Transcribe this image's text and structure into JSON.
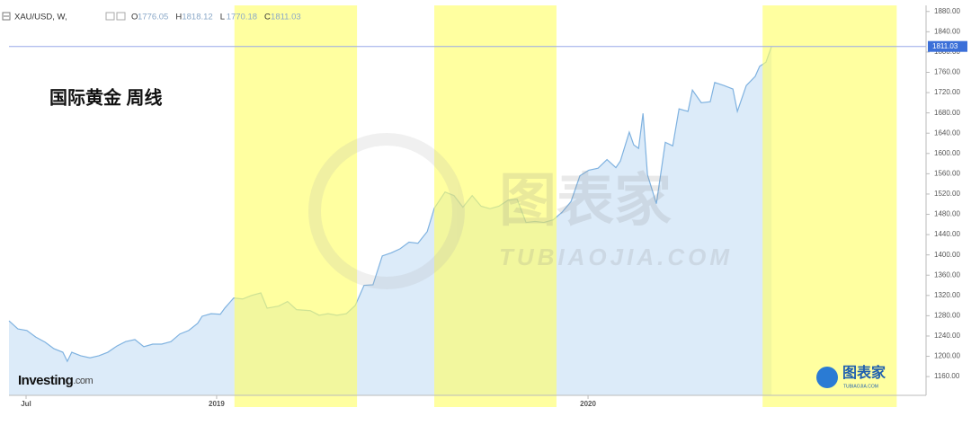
{
  "chart_data": {
    "type": "area",
    "symbol": "XAU/USD, W,",
    "ohlc": [
      {
        "label": "O",
        "value": 1776.05
      },
      {
        "label": "H",
        "value": 1818.12
      },
      {
        "label": "L",
        "value": 1770.18
      },
      {
        "label": "C",
        "value": 1811.03
      }
    ],
    "annotation": "国际黄金 周线",
    "logo": "Investing",
    "logo_suffix": ".com",
    "watermark": "图表家",
    "watermark_sub": "TUBIAOJIA.COM",
    "color": "#7fb2e0",
    "fill": "#dcebf9",
    "shade_color": "#ffff66",
    "shaded_ranges": [
      [
        2019.048,
        2019.378
      ],
      [
        2019.586,
        2019.915
      ],
      [
        2020.47,
        2020.831
      ]
    ],
    "xlim": [
      2018.441,
      2020.91
    ],
    "ylim": [
      1123,
      1892
    ],
    "xticks": [
      {
        "value": 2018.487,
        "label": "Jul"
      },
      2019,
      2020
    ],
    "yticks": [
      {
        "value": 1160,
        "label": "1160.00"
      },
      {
        "value": 1200,
        "label": "1200.00"
      },
      {
        "value": 1240,
        "label": "1240.00"
      },
      {
        "value": 1280,
        "label": "1280.00"
      },
      {
        "value": 1320,
        "label": "1320.00"
      },
      {
        "value": 1360,
        "label": "1360.00"
      },
      {
        "value": 1400,
        "label": "1400.00"
      },
      {
        "value": 1440,
        "label": "1440.00"
      },
      {
        "value": 1480,
        "label": "1480.00"
      },
      {
        "value": 1520,
        "label": "1520.00"
      },
      {
        "value": 1560,
        "label": "1560.00"
      },
      {
        "value": 1600,
        "label": "1600.00"
      },
      {
        "value": 1640,
        "label": "1640.00"
      },
      {
        "value": 1680,
        "label": "1680.00"
      },
      {
        "value": 1720,
        "label": "1720.00"
      },
      {
        "value": 1760,
        "label": "1760.00"
      },
      {
        "value": 1800,
        "label": "1800.00"
      },
      {
        "value": 1840,
        "label": "1840.00"
      },
      {
        "value": 1880,
        "label": "1880.00"
      }
    ],
    "series": [
      {
        "name": "XAU/USD",
        "x": [
          2018.441,
          2018.465,
          2018.489,
          2018.513,
          2018.538,
          2018.562,
          2018.586,
          2018.598,
          2018.61,
          2018.634,
          2018.659,
          2018.683,
          2018.707,
          2018.731,
          2018.755,
          2018.78,
          2018.804,
          2018.828,
          2018.852,
          2018.877,
          2018.901,
          2018.925,
          2018.949,
          2018.961,
          2018.985,
          2019.01,
          2019.022,
          2019.046,
          2019.07,
          2019.094,
          2019.119,
          2019.136,
          2019.167,
          2019.191,
          2019.215,
          2019.252,
          2019.276,
          2019.3,
          2019.324,
          2019.349,
          2019.373,
          2019.397,
          2019.421,
          2019.446,
          2019.47,
          2019.494,
          2019.518,
          2019.542,
          2019.567,
          2019.586,
          2019.615,
          2019.639,
          2019.663,
          2019.688,
          2019.712,
          2019.736,
          2019.76,
          2019.785,
          2019.809,
          2019.833,
          2019.857,
          2019.881,
          2019.906,
          2019.93,
          2019.954,
          2019.978,
          2020.002,
          2020.027,
          2020.051,
          2020.075,
          2020.087,
          2020.111,
          2020.123,
          2020.136,
          2020.148,
          2020.16,
          2020.184,
          2020.208,
          2020.228,
          2020.245,
          2020.269,
          2020.281,
          2020.305,
          2020.329,
          2020.341,
          2020.366,
          2020.39,
          2020.402,
          2020.426,
          2020.45,
          2020.462,
          2020.479,
          2020.494
        ],
        "values": [
          1270,
          1254,
          1251,
          1238,
          1228,
          1215,
          1208,
          1190,
          1208,
          1201,
          1197,
          1201,
          1208,
          1220,
          1229,
          1233,
          1219,
          1224,
          1224,
          1229,
          1244,
          1251,
          1265,
          1279,
          1284,
          1283,
          1295,
          1315,
          1313,
          1320,
          1325,
          1295,
          1299,
          1308,
          1292,
          1290,
          1281,
          1284,
          1281,
          1284,
          1300,
          1340,
          1341,
          1398,
          1404,
          1412,
          1425,
          1423,
          1446,
          1492,
          1524,
          1517,
          1494,
          1517,
          1496,
          1491,
          1496,
          1508,
          1510,
          1464,
          1466,
          1464,
          1469,
          1484,
          1505,
          1556,
          1567,
          1571,
          1588,
          1572,
          1585,
          1642,
          1617,
          1610,
          1679,
          1558,
          1501,
          1622,
          1615,
          1688,
          1683,
          1725,
          1700,
          1702,
          1740,
          1734,
          1727,
          1683,
          1734,
          1752,
          1772,
          1780,
          1811
        ]
      }
    ]
  }
}
